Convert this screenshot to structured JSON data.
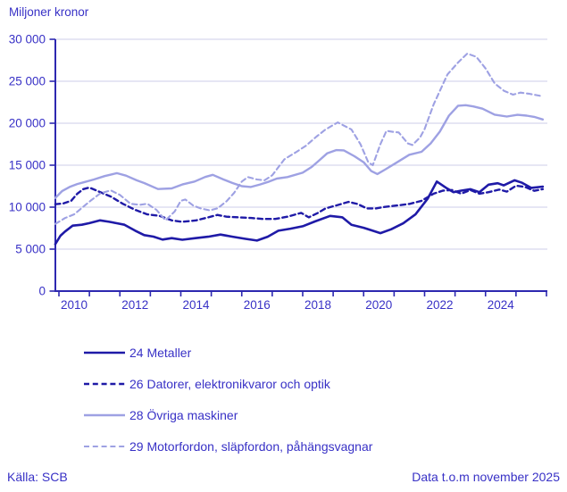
{
  "title": "Miljoner kronor",
  "footer": {
    "source": "Källa: SCB",
    "data_through": "Data t.o.m november 2025"
  },
  "colors": {
    "dark_series": "#1f1aa7",
    "light_series": "#9ea1e3",
    "text": "#3831c6",
    "axis": "#2d28b0",
    "grid": "#ccccE8",
    "background": "#ffffff"
  },
  "chart_data": {
    "type": "line",
    "title": "Miljoner kronor",
    "ylabel": "Miljoner kronor",
    "unit": "Miljoner kronor",
    "ylim": [
      0,
      30000
    ],
    "ytick_step": 5000,
    "ytick_labels": [
      "0",
      "5 000",
      "10 000",
      "15 000",
      "20 000",
      "25 000",
      "30 000"
    ],
    "x_range": [
      2009.88,
      2026.0
    ],
    "xtick_years": [
      2010,
      2011,
      2012,
      2013,
      2014,
      2015,
      2016,
      2017,
      2018,
      2019,
      2020,
      2021,
      2022,
      2023,
      2024,
      2025,
      2026
    ],
    "xtick_labels": [
      "2010",
      "2012",
      "2014",
      "2016",
      "2018",
      "2020",
      "2022",
      "2024"
    ],
    "grid": "horizontal",
    "legend_position": "bottom",
    "series": [
      {
        "name": "24 Metaller",
        "color": "#1f1aa7",
        "dashed": false,
        "width": 2.6,
        "points": [
          [
            2009.88,
            5600
          ],
          [
            2010.05,
            6600
          ],
          [
            2010.2,
            7100
          ],
          [
            2010.45,
            7800
          ],
          [
            2010.75,
            7900
          ],
          [
            2011.0,
            8100
          ],
          [
            2011.35,
            8430
          ],
          [
            2011.65,
            8260
          ],
          [
            2011.9,
            8080
          ],
          [
            2012.15,
            7900
          ],
          [
            2012.5,
            7200
          ],
          [
            2012.8,
            6670
          ],
          [
            2013.1,
            6490
          ],
          [
            2013.4,
            6140
          ],
          [
            2013.7,
            6310
          ],
          [
            2014.05,
            6120
          ],
          [
            2014.45,
            6300
          ],
          [
            2014.9,
            6480
          ],
          [
            2015.3,
            6730
          ],
          [
            2015.7,
            6480
          ],
          [
            2016.1,
            6230
          ],
          [
            2016.5,
            6020
          ],
          [
            2016.85,
            6480
          ],
          [
            2017.2,
            7190
          ],
          [
            2017.6,
            7440
          ],
          [
            2018.0,
            7725
          ],
          [
            2018.4,
            8300
          ],
          [
            2018.9,
            8960
          ],
          [
            2019.3,
            8790
          ],
          [
            2019.6,
            7900
          ],
          [
            2020.0,
            7540
          ],
          [
            2020.3,
            7190
          ],
          [
            2020.55,
            6900
          ],
          [
            2020.9,
            7360
          ],
          [
            2021.3,
            8070
          ],
          [
            2021.7,
            9140
          ],
          [
            2022.1,
            11000
          ],
          [
            2022.4,
            13050
          ],
          [
            2022.7,
            12320
          ],
          [
            2022.95,
            11790
          ],
          [
            2023.2,
            11970
          ],
          [
            2023.5,
            12140
          ],
          [
            2023.8,
            11790
          ],
          [
            2024.1,
            12680
          ],
          [
            2024.4,
            12850
          ],
          [
            2024.6,
            12600
          ],
          [
            2024.95,
            13200
          ],
          [
            2025.2,
            12900
          ],
          [
            2025.5,
            12300
          ],
          [
            2025.88,
            12450
          ]
        ]
      },
      {
        "name": "26 Datorer, elektronikvaror och optik",
        "color": "#1f1aa7",
        "dashed": true,
        "width": 2.4,
        "points": [
          [
            2009.88,
            10350
          ],
          [
            2010.15,
            10450
          ],
          [
            2010.4,
            10750
          ],
          [
            2010.6,
            11600
          ],
          [
            2010.8,
            12150
          ],
          [
            2011.0,
            12340
          ],
          [
            2011.35,
            11800
          ],
          [
            2011.7,
            11270
          ],
          [
            2012.1,
            10390
          ],
          [
            2012.5,
            9680
          ],
          [
            2012.9,
            9140
          ],
          [
            2013.3,
            8965
          ],
          [
            2013.7,
            8430
          ],
          [
            2014.05,
            8260
          ],
          [
            2014.5,
            8430
          ],
          [
            2014.9,
            8790
          ],
          [
            2015.2,
            9070
          ],
          [
            2015.5,
            8860
          ],
          [
            2015.9,
            8790
          ],
          [
            2016.3,
            8715
          ],
          [
            2016.7,
            8600
          ],
          [
            2017.1,
            8600
          ],
          [
            2017.5,
            8860
          ],
          [
            2017.95,
            9320
          ],
          [
            2018.2,
            8790
          ],
          [
            2018.5,
            9320
          ],
          [
            2018.75,
            9850
          ],
          [
            2019.1,
            10200
          ],
          [
            2019.5,
            10630
          ],
          [
            2019.8,
            10380
          ],
          [
            2020.1,
            9850
          ],
          [
            2020.4,
            9850
          ],
          [
            2020.7,
            10030
          ],
          [
            2021.1,
            10200
          ],
          [
            2021.5,
            10380
          ],
          [
            2021.9,
            10750
          ],
          [
            2022.3,
            11610
          ],
          [
            2022.6,
            11965
          ],
          [
            2022.9,
            12040
          ],
          [
            2023.2,
            11610
          ],
          [
            2023.5,
            12040
          ],
          [
            2023.8,
            11610
          ],
          [
            2024.1,
            11790
          ],
          [
            2024.45,
            12100
          ],
          [
            2024.7,
            11850
          ],
          [
            2025.0,
            12550
          ],
          [
            2025.3,
            12400
          ],
          [
            2025.6,
            11950
          ],
          [
            2025.88,
            12150
          ]
        ]
      },
      {
        "name": "28 Övriga maskiner",
        "color": "#9ea1e3",
        "dashed": false,
        "width": 2.4,
        "points": [
          [
            2009.88,
            11100
          ],
          [
            2010.1,
            11900
          ],
          [
            2010.35,
            12400
          ],
          [
            2010.6,
            12750
          ],
          [
            2010.85,
            13000
          ],
          [
            2011.15,
            13300
          ],
          [
            2011.5,
            13700
          ],
          [
            2011.9,
            14050
          ],
          [
            2012.2,
            13760
          ],
          [
            2012.55,
            13200
          ],
          [
            2012.8,
            12870
          ],
          [
            2013.25,
            12160
          ],
          [
            2013.7,
            12230
          ],
          [
            2014.05,
            12700
          ],
          [
            2014.45,
            13050
          ],
          [
            2014.8,
            13600
          ],
          [
            2015.05,
            13850
          ],
          [
            2015.4,
            13300
          ],
          [
            2015.7,
            12870
          ],
          [
            2016.0,
            12500
          ],
          [
            2016.3,
            12400
          ],
          [
            2016.6,
            12700
          ],
          [
            2016.9,
            13050
          ],
          [
            2017.15,
            13400
          ],
          [
            2017.5,
            13580
          ],
          [
            2018.0,
            14110
          ],
          [
            2018.3,
            14800
          ],
          [
            2018.55,
            15600
          ],
          [
            2018.8,
            16400
          ],
          [
            2019.1,
            16800
          ],
          [
            2019.35,
            16770
          ],
          [
            2019.7,
            16060
          ],
          [
            2020.0,
            15350
          ],
          [
            2020.25,
            14300
          ],
          [
            2020.45,
            13950
          ],
          [
            2020.7,
            14465
          ],
          [
            2021.1,
            15350
          ],
          [
            2021.5,
            16240
          ],
          [
            2021.9,
            16600
          ],
          [
            2022.2,
            17600
          ],
          [
            2022.5,
            19000
          ],
          [
            2022.8,
            20900
          ],
          [
            2023.1,
            22080
          ],
          [
            2023.35,
            22150
          ],
          [
            2023.6,
            22000
          ],
          [
            2023.9,
            21730
          ],
          [
            2024.3,
            21020
          ],
          [
            2024.7,
            20800
          ],
          [
            2025.05,
            21000
          ],
          [
            2025.35,
            20900
          ],
          [
            2025.6,
            20750
          ],
          [
            2025.88,
            20450
          ]
        ]
      },
      {
        "name": "29 Motorfordon, släpfordon, påhängsvagnar",
        "color": "#9ea1e3",
        "dashed": true,
        "width": 2.1,
        "points": [
          [
            2009.88,
            8000
          ],
          [
            2010.2,
            8700
          ],
          [
            2010.5,
            9150
          ],
          [
            2010.8,
            10050
          ],
          [
            2011.05,
            10800
          ],
          [
            2011.35,
            11630
          ],
          [
            2011.7,
            12000
          ],
          [
            2012.0,
            11455
          ],
          [
            2012.35,
            10400
          ],
          [
            2012.65,
            10280
          ],
          [
            2012.9,
            10400
          ],
          [
            2013.2,
            9680
          ],
          [
            2013.5,
            8430
          ],
          [
            2013.8,
            9500
          ],
          [
            2014.0,
            10750
          ],
          [
            2014.15,
            10920
          ],
          [
            2014.4,
            10200
          ],
          [
            2014.65,
            9850
          ],
          [
            2014.95,
            9620
          ],
          [
            2015.2,
            9850
          ],
          [
            2015.5,
            10700
          ],
          [
            2015.75,
            11700
          ],
          [
            2016.0,
            13050
          ],
          [
            2016.2,
            13580
          ],
          [
            2016.5,
            13300
          ],
          [
            2016.75,
            13200
          ],
          [
            2017.0,
            13800
          ],
          [
            2017.4,
            15700
          ],
          [
            2017.8,
            16600
          ],
          [
            2018.1,
            17300
          ],
          [
            2018.45,
            18400
          ],
          [
            2018.75,
            19250
          ],
          [
            2019.15,
            20100
          ],
          [
            2019.6,
            19250
          ],
          [
            2019.9,
            17480
          ],
          [
            2020.15,
            15350
          ],
          [
            2020.3,
            15000
          ],
          [
            2020.55,
            17500
          ],
          [
            2020.75,
            19100
          ],
          [
            2021.0,
            18950
          ],
          [
            2021.15,
            18900
          ],
          [
            2021.45,
            17600
          ],
          [
            2021.6,
            17400
          ],
          [
            2021.85,
            18300
          ],
          [
            2022.0,
            19300
          ],
          [
            2022.3,
            22260
          ],
          [
            2022.75,
            25810
          ],
          [
            2023.1,
            27230
          ],
          [
            2023.4,
            28300
          ],
          [
            2023.7,
            27900
          ],
          [
            2024.0,
            26520
          ],
          [
            2024.3,
            24745
          ],
          [
            2024.6,
            23870
          ],
          [
            2024.9,
            23400
          ],
          [
            2025.15,
            23650
          ],
          [
            2025.45,
            23500
          ],
          [
            2025.88,
            23200
          ]
        ]
      }
    ]
  }
}
